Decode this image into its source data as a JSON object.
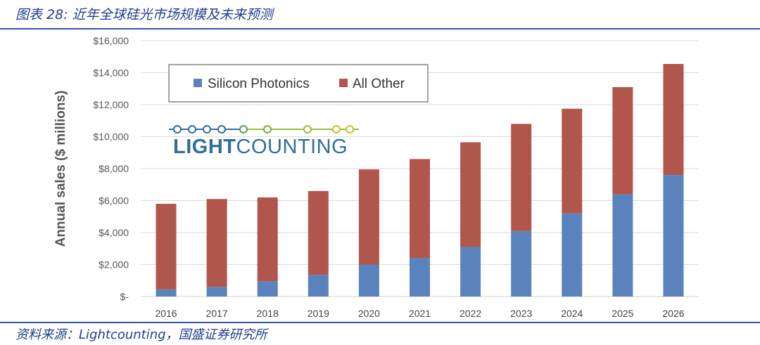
{
  "figure": {
    "title": "图表 28:  近年全球硅光市场规模及未来预测",
    "source": "资料来源：Lightcounting，国盛证券研究所"
  },
  "logo": {
    "text_light": "LIGHT",
    "text_counting": "COUNTING"
  },
  "colors": {
    "silicon_photonics": "#5a82bd",
    "all_other": "#b0564c",
    "gridline": "#d9d9d9",
    "rule": "#2f56a8"
  },
  "chart_data": {
    "type": "bar",
    "stacked": true,
    "title": "",
    "xlabel": "",
    "ylabel": "Annual sales ($ millions)",
    "ylim": [
      0,
      16000
    ],
    "yticks": [
      0,
      2000,
      4000,
      6000,
      8000,
      10000,
      12000,
      14000,
      16000
    ],
    "ytick_labels": [
      "$-",
      "$2,000",
      "$4,000",
      "$6,000",
      "$8,000",
      "$10,000",
      "$12,000",
      "$14,000",
      "$16,000"
    ],
    "grid": true,
    "legend_position": "top-left",
    "categories": [
      "2016",
      "2017",
      "2018",
      "2019",
      "2020",
      "2021",
      "2022",
      "2023",
      "2024",
      "2025",
      "2026"
    ],
    "series": [
      {
        "name": "Silicon Photonics",
        "values": [
          450,
          600,
          950,
          1350,
          2000,
          2400,
          3100,
          4100,
          5200,
          6400,
          7600
        ]
      },
      {
        "name": "All Other",
        "values": [
          5350,
          5500,
          5250,
          5250,
          5950,
          6200,
          6550,
          6700,
          6550,
          6700,
          6950
        ]
      }
    ]
  }
}
